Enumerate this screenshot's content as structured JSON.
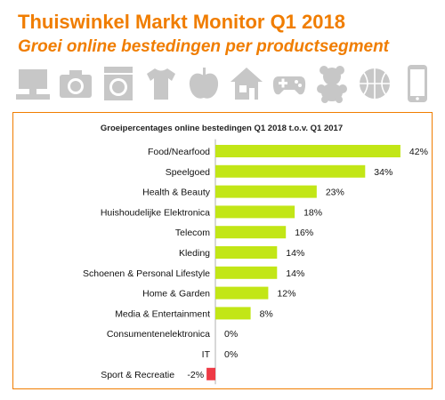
{
  "header": {
    "title": "Thuiswinkel Markt Monitor Q1 2018",
    "subtitle": "Groei online bestedingen per productsegment"
  },
  "icons": [
    "computer-icon",
    "camera-icon",
    "washing-machine-icon",
    "tshirt-icon",
    "apple-icon",
    "house-icon",
    "gamepad-icon",
    "teddy-bear-icon",
    "basketball-icon",
    "smartphone-icon"
  ],
  "colors": {
    "brand": "#f07d00",
    "positive_bar": "#c2e616",
    "negative_bar": "#ee3a45",
    "icon_gray": "#c7c7c7"
  },
  "chart_data": {
    "type": "bar",
    "orientation": "horizontal",
    "title": "Groeipercentages online bestedingen Q1 2018 t.o.v. Q1 2017",
    "categories": [
      "Food/Nearfood",
      "Speelgoed",
      "Health & Beauty",
      "Huishoudelijke Elektronica",
      "Telecom",
      "Kleding",
      "Schoenen & Personal Lifestyle",
      "Home & Garden",
      "Media & Entertainment",
      "Consumentenelektronica",
      "IT",
      "Sport & Recreatie"
    ],
    "values": [
      42,
      34,
      23,
      18,
      16,
      14,
      14,
      12,
      8,
      0,
      0,
      -2
    ],
    "value_labels": [
      "42%",
      "34%",
      "23%",
      "18%",
      "16%",
      "14%",
      "14%",
      "12%",
      "8%",
      "0%",
      "0%",
      "-2%"
    ],
    "unit": "%",
    "xlim": [
      -2,
      42
    ],
    "grid": false,
    "legend": "none"
  }
}
